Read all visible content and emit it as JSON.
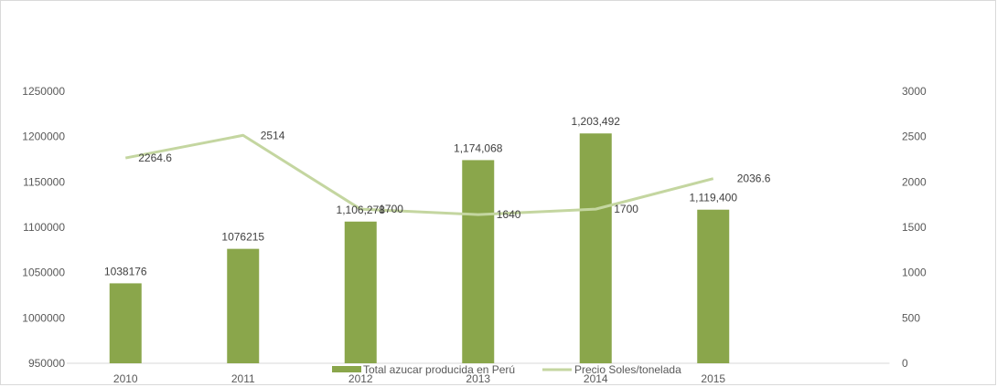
{
  "chart_data": {
    "type": "bar",
    "title": "",
    "categories": [
      "2010",
      "2011",
      "2012",
      "2013",
      "2014",
      "2015"
    ],
    "series": [
      {
        "name": "Total azucar producida en Perú",
        "type": "bar",
        "axis": "left",
        "color": "#8aa64b",
        "values": [
          1038176,
          1076215,
          1106278,
          1174068,
          1203492,
          1119400
        ],
        "data_labels": [
          "1038176",
          "1076215",
          "1,106,278",
          "1,174,068",
          "1,203,492",
          "1,119,400"
        ]
      },
      {
        "name": "Precio Soles/tonelada",
        "type": "line",
        "axis": "right",
        "color": "#c4d6a0",
        "values": [
          2264.6,
          2514,
          1700,
          1640,
          1700,
          2036.6
        ],
        "data_labels": [
          "2264.6",
          "2514",
          "1700",
          "1640",
          "1700",
          "2036.6"
        ]
      }
    ],
    "y_left": {
      "min": 950000,
      "max": 1250000,
      "ticks": [
        "950000",
        "1000000",
        "1050000",
        "1100000",
        "1150000",
        "1200000",
        "1250000"
      ]
    },
    "y_right": {
      "min": 0,
      "max": 3000,
      "ticks": [
        "0",
        "500",
        "1000",
        "1500",
        "2000",
        "2500",
        "3000"
      ]
    },
    "grid": false,
    "legend": "bottom"
  }
}
